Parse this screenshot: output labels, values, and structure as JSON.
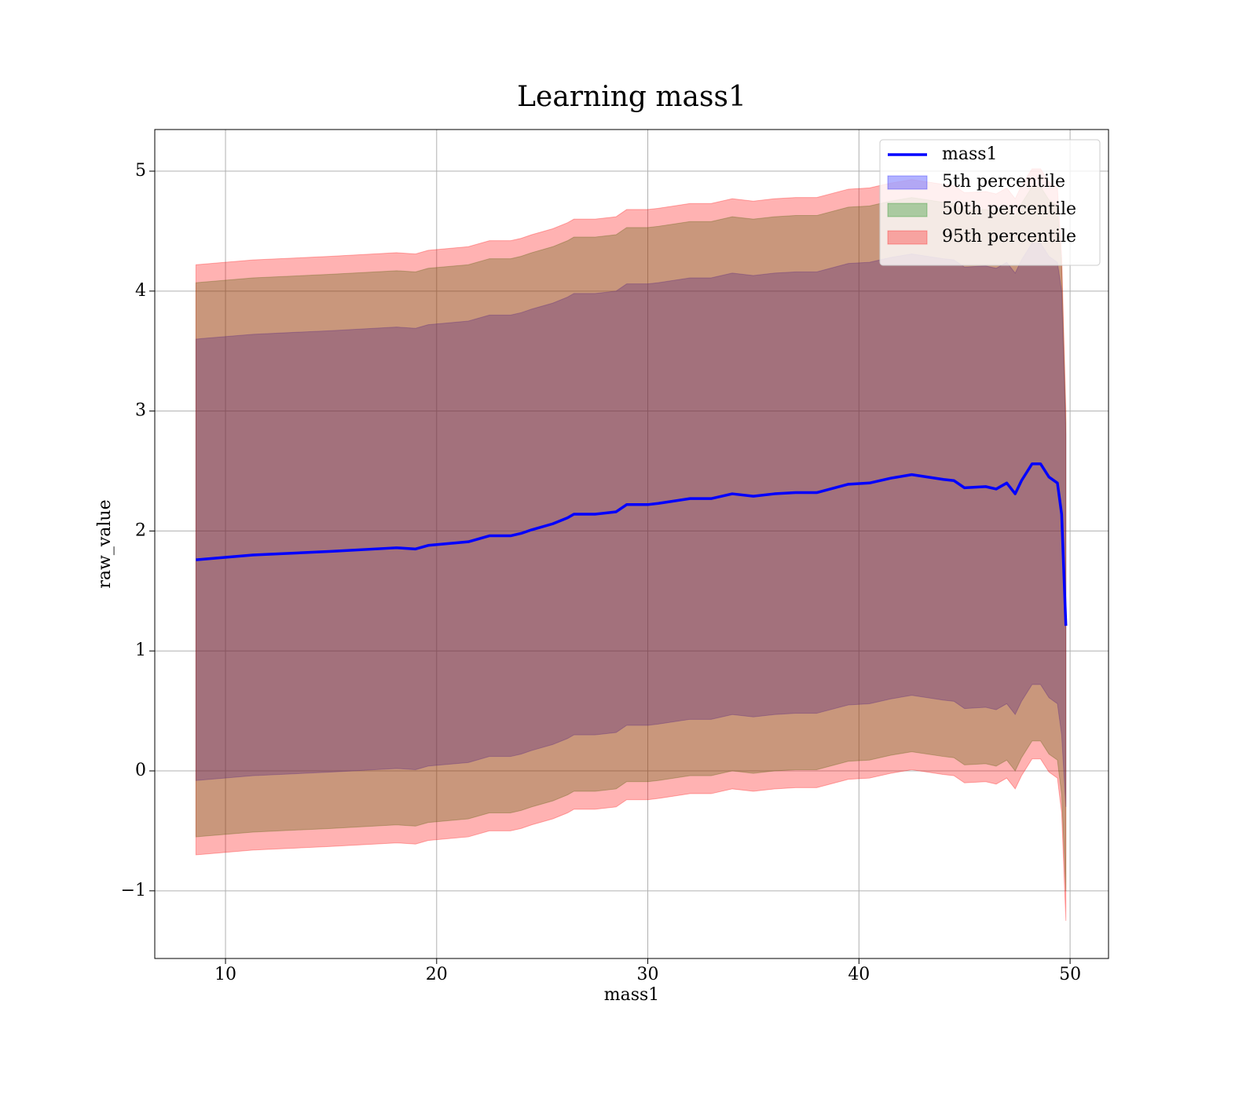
{
  "chart_data": {
    "type": "line",
    "title": "Learning mass1",
    "xlabel": "mass1",
    "ylabel": "raw_value",
    "x": [
      8.6,
      11.3,
      15,
      18.1,
      19,
      19.6,
      21.5,
      22.5,
      23.5,
      24,
      24.5,
      25.5,
      26.2,
      26.5,
      27.5,
      28.5,
      29,
      30,
      30.5,
      32,
      33,
      34,
      35,
      36,
      37,
      38,
      39.5,
      40.5,
      41.5,
      42.5,
      44,
      44.5,
      45,
      46,
      46.5,
      47,
      47.4,
      47.7,
      48.2,
      48.6,
      49,
      49.4,
      49.6,
      49.8
    ],
    "series": [
      {
        "name": "mass1",
        "color": "#0000ff",
        "values": [
          1.76,
          1.8,
          1.83,
          1.86,
          1.85,
          1.88,
          1.91,
          1.96,
          1.96,
          1.98,
          2.01,
          2.06,
          2.11,
          2.14,
          2.14,
          2.16,
          2.22,
          2.22,
          2.23,
          2.27,
          2.27,
          2.31,
          2.29,
          2.31,
          2.32,
          2.32,
          2.39,
          2.4,
          2.44,
          2.47,
          2.43,
          2.42,
          2.36,
          2.37,
          2.35,
          2.4,
          2.31,
          2.42,
          2.56,
          2.56,
          2.45,
          2.4,
          2.14,
          1.21
        ]
      }
    ],
    "bands": [
      {
        "name": "5th percentile",
        "color": "#0000ff",
        "opacity": 0.3,
        "lower": [
          -0.08,
          -0.04,
          -0.01,
          0.02,
          0.01,
          0.04,
          0.07,
          0.12,
          0.12,
          0.14,
          0.17,
          0.22,
          0.27,
          0.3,
          0.3,
          0.32,
          0.38,
          0.38,
          0.39,
          0.43,
          0.43,
          0.47,
          0.45,
          0.47,
          0.48,
          0.48,
          0.55,
          0.56,
          0.6,
          0.63,
          0.59,
          0.58,
          0.52,
          0.53,
          0.51,
          0.56,
          0.47,
          0.58,
          0.72,
          0.72,
          0.61,
          0.56,
          0.3,
          -0.3
        ],
        "upper": [
          3.6,
          3.64,
          3.67,
          3.7,
          3.69,
          3.72,
          3.75,
          3.8,
          3.8,
          3.82,
          3.85,
          3.9,
          3.95,
          3.98,
          3.98,
          4.0,
          4.06,
          4.06,
          4.07,
          4.11,
          4.11,
          4.15,
          4.13,
          4.15,
          4.16,
          4.16,
          4.23,
          4.24,
          4.28,
          4.31,
          4.27,
          4.26,
          4.2,
          4.21,
          4.19,
          4.24,
          4.15,
          4.26,
          4.4,
          4.4,
          4.29,
          4.24,
          4.0,
          2.8
        ]
      },
      {
        "name": "50th percentile",
        "color": "#008000",
        "opacity": 0.3,
        "lower": [
          -0.55,
          -0.51,
          -0.48,
          -0.45,
          -0.46,
          -0.43,
          -0.4,
          -0.35,
          -0.35,
          -0.33,
          -0.3,
          -0.25,
          -0.2,
          -0.17,
          -0.17,
          -0.15,
          -0.09,
          -0.09,
          -0.08,
          -0.04,
          -0.04,
          0.0,
          -0.02,
          0.0,
          0.01,
          0.01,
          0.08,
          0.09,
          0.13,
          0.16,
          0.12,
          0.11,
          0.05,
          0.06,
          0.04,
          0.09,
          0.0,
          0.11,
          0.25,
          0.25,
          0.14,
          0.09,
          -0.2,
          -1.0
        ],
        "upper": [
          4.07,
          4.11,
          4.14,
          4.17,
          4.16,
          4.19,
          4.22,
          4.27,
          4.27,
          4.29,
          4.32,
          4.37,
          4.42,
          4.45,
          4.45,
          4.47,
          4.53,
          4.53,
          4.54,
          4.58,
          4.58,
          4.62,
          4.6,
          4.62,
          4.63,
          4.63,
          4.7,
          4.71,
          4.75,
          4.78,
          4.74,
          4.73,
          4.67,
          4.68,
          4.66,
          4.71,
          4.62,
          4.73,
          4.87,
          4.87,
          4.76,
          4.71,
          4.2,
          2.9
        ]
      },
      {
        "name": "95th percentile",
        "color": "#ff0000",
        "opacity": 0.3,
        "lower": [
          -0.7,
          -0.66,
          -0.63,
          -0.6,
          -0.61,
          -0.58,
          -0.55,
          -0.5,
          -0.5,
          -0.48,
          -0.45,
          -0.4,
          -0.35,
          -0.32,
          -0.32,
          -0.3,
          -0.24,
          -0.24,
          -0.23,
          -0.19,
          -0.19,
          -0.15,
          -0.17,
          -0.15,
          -0.14,
          -0.14,
          -0.07,
          -0.06,
          -0.02,
          0.01,
          -0.03,
          -0.04,
          -0.1,
          -0.09,
          -0.11,
          -0.06,
          -0.15,
          -0.04,
          0.1,
          0.1,
          -0.01,
          -0.06,
          -0.35,
          -1.25
        ],
        "upper": [
          4.22,
          4.26,
          4.29,
          4.32,
          4.31,
          4.34,
          4.37,
          4.42,
          4.42,
          4.44,
          4.47,
          4.52,
          4.57,
          4.6,
          4.6,
          4.62,
          4.68,
          4.68,
          4.69,
          4.73,
          4.73,
          4.77,
          4.75,
          4.77,
          4.78,
          4.78,
          4.85,
          4.86,
          4.9,
          4.93,
          4.89,
          4.88,
          4.82,
          4.83,
          4.81,
          4.86,
          4.77,
          4.88,
          5.02,
          5.02,
          4.91,
          4.86,
          4.3,
          3.0
        ]
      }
    ],
    "xlim": [
      6.65,
      51.82
    ],
    "ylim": [
      -1.564,
      5.347
    ],
    "xticks": [
      10,
      20,
      30,
      40,
      50
    ],
    "yticks": [
      {
        "value": -1,
        "label": "−1"
      },
      0,
      1,
      2,
      3,
      4,
      5
    ],
    "grid": true,
    "legend": "upper right"
  }
}
